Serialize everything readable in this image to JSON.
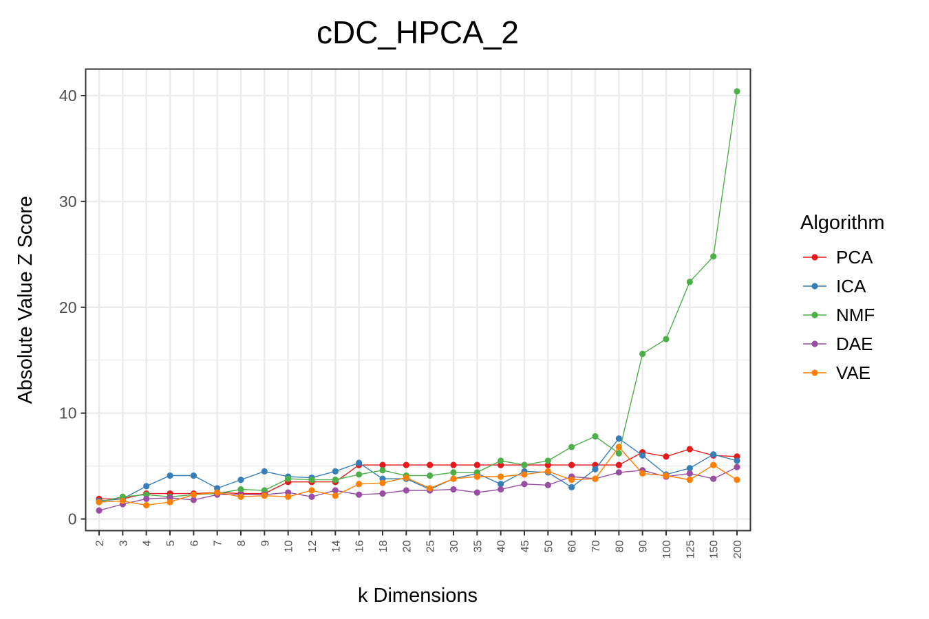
{
  "chart_data": {
    "type": "line",
    "title": "cDC_HPCA_2",
    "xlabel": "k Dimensions",
    "ylabel": "Absolute Value Z Score",
    "categories": [
      "2",
      "3",
      "4",
      "5",
      "6",
      "7",
      "8",
      "9",
      "10",
      "12",
      "14",
      "16",
      "18",
      "20",
      "25",
      "30",
      "35",
      "40",
      "45",
      "50",
      "60",
      "70",
      "80",
      "90",
      "100",
      "125",
      "150",
      "200"
    ],
    "y_ticks": [
      0,
      10,
      20,
      30,
      40
    ],
    "ylim": [
      -1.1,
      42.5
    ],
    "grid": true,
    "legend": {
      "title": "Algorithm",
      "placement": "right"
    },
    "series": [
      {
        "name": "PCA",
        "color": "#e41a1c",
        "values": [
          1.9,
          1.9,
          2.4,
          2.4,
          2.4,
          2.5,
          2.4,
          2.4,
          3.5,
          3.5,
          3.5,
          5.1,
          5.1,
          5.1,
          5.1,
          5.1,
          5.1,
          5.1,
          5.1,
          5.1,
          5.1,
          5.1,
          5.1,
          6.3,
          5.9,
          6.6,
          6.0,
          5.9
        ]
      },
      {
        "name": "ICA",
        "color": "#377eb8",
        "values": [
          1.7,
          1.9,
          3.1,
          4.1,
          4.1,
          2.9,
          3.7,
          4.5,
          4.0,
          3.9,
          4.5,
          5.3,
          3.8,
          3.8,
          2.8,
          3.8,
          4.3,
          3.3,
          4.5,
          4.4,
          3.0,
          4.7,
          7.6,
          6.0,
          4.2,
          4.8,
          6.1,
          5.5
        ]
      },
      {
        "name": "NMF",
        "color": "#4daf4a",
        "values": [
          1.6,
          2.1,
          2.3,
          2.1,
          2.3,
          2.4,
          2.8,
          2.7,
          3.8,
          3.7,
          3.7,
          4.2,
          4.6,
          4.1,
          4.1,
          4.4,
          4.4,
          5.5,
          5.1,
          5.5,
          6.8,
          7.8,
          6.2,
          15.6,
          17.0,
          22.4,
          24.8,
          40.4
        ]
      },
      {
        "name": "DAE",
        "color": "#984ea3",
        "values": [
          0.8,
          1.4,
          1.9,
          2.0,
          1.8,
          2.3,
          2.3,
          2.3,
          2.5,
          2.1,
          2.7,
          2.3,
          2.4,
          2.7,
          2.7,
          2.8,
          2.5,
          2.8,
          3.3,
          3.2,
          4.0,
          3.8,
          4.4,
          4.6,
          4.0,
          4.3,
          3.8,
          4.9
        ]
      },
      {
        "name": "VAE",
        "color": "#ff7f00",
        "values": [
          1.6,
          1.7,
          1.3,
          1.6,
          2.3,
          2.5,
          2.1,
          2.2,
          2.1,
          2.7,
          2.2,
          3.3,
          3.4,
          3.9,
          2.9,
          3.8,
          4.0,
          4.0,
          4.2,
          4.5,
          3.7,
          3.8,
          6.8,
          4.3,
          4.1,
          3.7,
          5.1,
          3.7
        ]
      }
    ]
  }
}
